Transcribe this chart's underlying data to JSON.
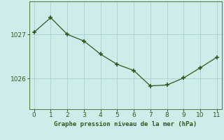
{
  "x": [
    0,
    1,
    2,
    3,
    4,
    5,
    6,
    7,
    8,
    9,
    10,
    11
  ],
  "y": [
    1027.05,
    1027.38,
    1027.0,
    1026.85,
    1026.55,
    1026.32,
    1026.18,
    1025.83,
    1025.85,
    1026.01,
    1026.24,
    1026.48
  ],
  "line_color": "#2d5a1b",
  "marker": "+",
  "marker_size": 4,
  "marker_lw": 1.2,
  "bg_color": "#ceecea",
  "grid_color": "#aed4d0",
  "xlabel": "Graphe pression niveau de la mer (hPa)",
  "xlabel_color": "#2d5a1b",
  "tick_color": "#2d5a1b",
  "spine_color": "#4a7a3a",
  "yticks": [
    1026,
    1027
  ],
  "ylim": [
    1025.3,
    1027.75
  ],
  "xlim": [
    -0.3,
    11.3
  ],
  "xticks": [
    0,
    1,
    2,
    3,
    4,
    5,
    6,
    7,
    8,
    9,
    10,
    11
  ]
}
